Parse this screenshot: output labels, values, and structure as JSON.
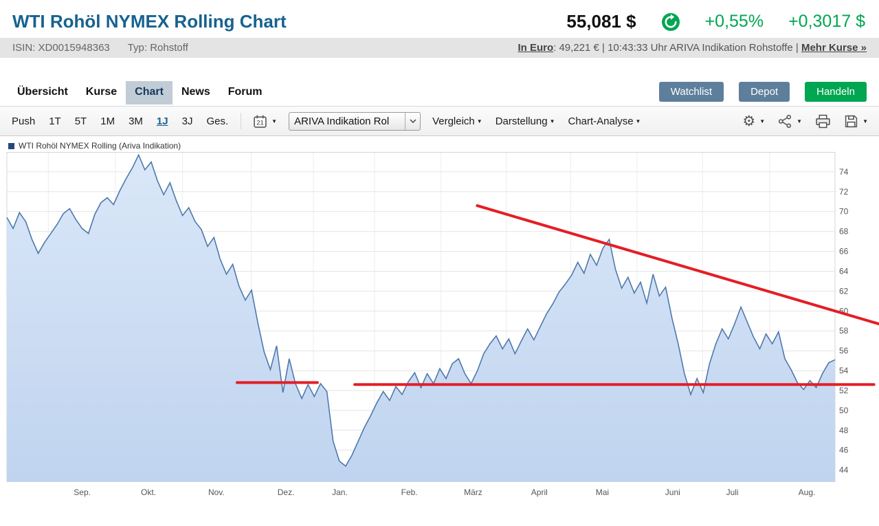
{
  "colors": {
    "title_blue": "#17628f",
    "positive_green": "#00a651",
    "button_blue": "#5e7f9c",
    "trade_green": "#00a651",
    "trend_red": "#e41e25",
    "series_line": "#4d79ad"
  },
  "header": {
    "title": "WTI Rohöl NYMEX Rolling Chart",
    "price": "55,081 $",
    "change_pct": "+0,55%",
    "change_abs": "+0,3017 $"
  },
  "infobar": {
    "isin": "ISIN: XD0015948363",
    "typ": "Typ: Rohstoff",
    "in_euro_label": "In Euro",
    "euro_price": ": 49,221 €",
    "indication": " | 10:43:33 Uhr ARIVA Indikation Rohstoffe | ",
    "mehr_kurse": "Mehr Kurse »"
  },
  "nav": {
    "tabs": [
      {
        "label": "Übersicht",
        "active": false
      },
      {
        "label": "Kurse",
        "active": false
      },
      {
        "label": "Chart",
        "active": true
      },
      {
        "label": "News",
        "active": false
      },
      {
        "label": "Forum",
        "active": false
      }
    ],
    "watchlist": "Watchlist",
    "depot": "Depot",
    "handeln": "Handeln"
  },
  "toolbar": {
    "ranges": [
      "Push",
      "1T",
      "5T",
      "1M",
      "3M",
      "1J",
      "3J",
      "Ges."
    ],
    "active_range": "1J",
    "calendar_day": "21",
    "select_value": "ARIVA Indikation Rol",
    "menus": [
      "Vergleich",
      "Darstellung",
      "Chart-Analyse"
    ]
  },
  "chart_data": {
    "type": "area",
    "title": "WTI Rohöl NYMEX Rolling (Ariva Indikation)",
    "legend": "WTI Rohöl NYMEX Rolling (Ariva Indikation)",
    "ylim": [
      42.8,
      76.0
    ],
    "yticks": [
      44,
      46,
      48,
      50,
      52,
      54,
      56,
      58,
      60,
      62,
      64,
      66,
      68,
      70,
      72,
      74
    ],
    "x_labels": [
      {
        "label": "Sep.",
        "f": 0.091
      },
      {
        "label": "Okt.",
        "f": 0.171
      },
      {
        "label": "Nov.",
        "f": 0.253
      },
      {
        "label": "Dez.",
        "f": 0.337
      },
      {
        "label": "Jan.",
        "f": 0.402
      },
      {
        "label": "Feb.",
        "f": 0.486
      },
      {
        "label": "März",
        "f": 0.563
      },
      {
        "label": "April",
        "f": 0.643
      },
      {
        "label": "Mai",
        "f": 0.719
      },
      {
        "label": "Juni",
        "f": 0.804
      },
      {
        "label": "Juli",
        "f": 0.876
      },
      {
        "label": "Aug.",
        "f": 0.966
      }
    ],
    "gridline_f": [
      0.05,
      0.131,
      0.212,
      0.295,
      0.37,
      0.444,
      0.524,
      0.603,
      0.681,
      0.761,
      0.84,
      0.921
    ],
    "values": [
      69.4,
      68.3,
      69.9,
      69.0,
      67.2,
      65.8,
      66.9,
      67.8,
      68.7,
      69.8,
      70.3,
      69.2,
      68.3,
      67.8,
      69.7,
      70.9,
      71.4,
      70.7,
      72.1,
      73.3,
      74.4,
      75.7,
      74.2,
      75.0,
      73.1,
      71.7,
      72.9,
      71.1,
      69.6,
      70.4,
      69.0,
      68.2,
      66.5,
      67.4,
      65.2,
      63.7,
      64.7,
      62.5,
      61.1,
      62.1,
      58.8,
      55.9,
      54.1,
      56.5,
      51.8,
      55.2,
      52.7,
      51.2,
      52.6,
      51.4,
      52.7,
      51.9,
      46.9,
      44.9,
      44.4,
      45.5,
      46.9,
      48.3,
      49.5,
      50.8,
      51.9,
      51.0,
      52.4,
      51.6,
      52.9,
      53.8,
      52.3,
      53.7,
      52.7,
      54.2,
      53.2,
      54.7,
      55.2,
      53.7,
      52.7,
      54.0,
      55.7,
      56.7,
      57.5,
      56.2,
      57.2,
      55.7,
      57.0,
      58.2,
      57.1,
      58.4,
      59.7,
      60.7,
      61.9,
      62.7,
      63.6,
      64.9,
      63.8,
      65.7,
      64.6,
      66.3,
      67.2,
      64.2,
      62.3,
      63.4,
      61.8,
      62.9,
      60.8,
      63.7,
      61.5,
      62.4,
      59.3,
      56.7,
      53.7,
      51.6,
      53.2,
      51.8,
      54.7,
      56.7,
      58.2,
      57.2,
      58.7,
      60.4,
      58.9,
      57.4,
      56.2,
      57.7,
      56.7,
      57.9,
      55.2,
      54.1,
      52.8,
      52.1,
      53.0,
      52.3,
      53.7,
      54.8,
      55.1
    ],
    "line_color": "#4d79ad",
    "fill_top": "#dae7f8",
    "fill_bottom": "#c0d4ef",
    "trend_lines": [
      {
        "x1": 0.568,
        "v1": 70.6,
        "x2": 1.053,
        "v2": 58.7,
        "color": "#e41e25",
        "width": 4
      },
      {
        "x1": 0.278,
        "v1": 52.8,
        "x2": 0.375,
        "v2": 52.8,
        "color": "#e41e25",
        "width": 4
      },
      {
        "x1": 0.42,
        "v1": 52.6,
        "x2": 1.047,
        "v2": 52.6,
        "color": "#e41e25",
        "width": 4
      }
    ]
  }
}
